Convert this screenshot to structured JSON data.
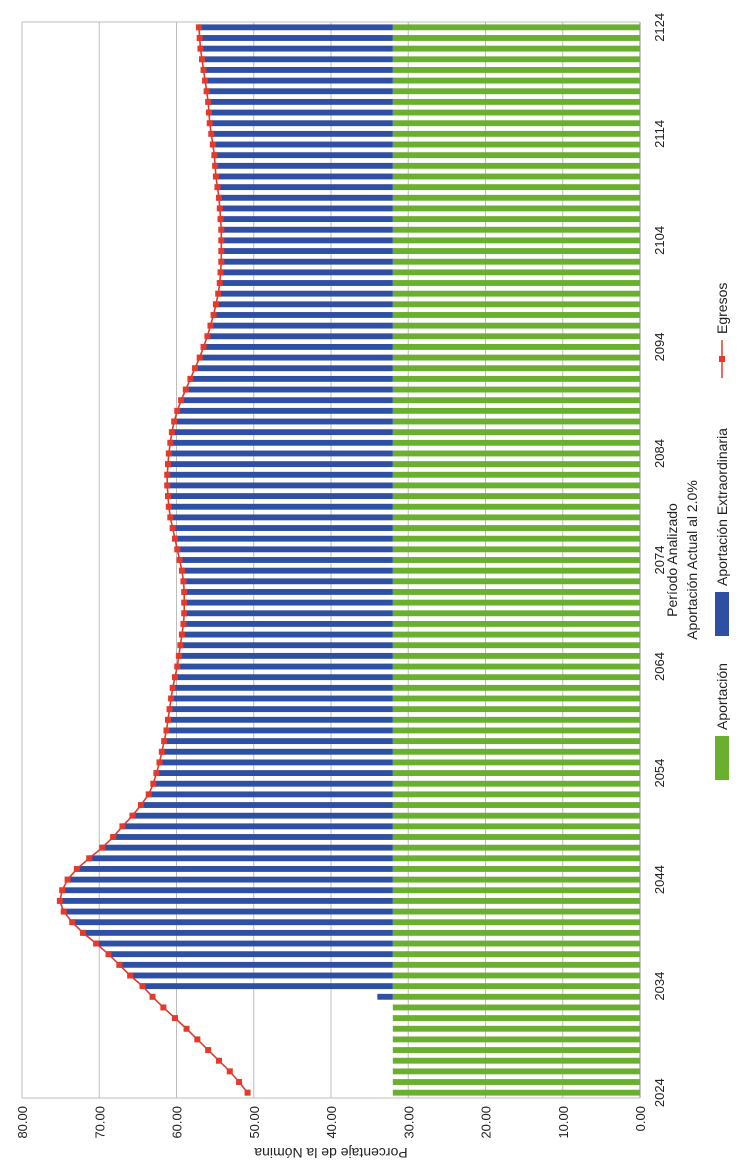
{
  "chart_data": {
    "type": "bar",
    "orientation": "rotated-90-ccw",
    "stacked": true,
    "xlabel": "Período Analizado",
    "subtitle": "Aportación Actual al 2.0%",
    "ylabel": "Porcentaje de la Nómina",
    "ylim": [
      0,
      80
    ],
    "yticks": [
      "0.00",
      "10.00",
      "20.00",
      "30.00",
      "40.00",
      "50.00",
      "60.00",
      "70.00",
      "80.00"
    ],
    "xticks": [
      "2024",
      "2034",
      "2044",
      "2054",
      "2064",
      "2074",
      "2084",
      "2094",
      "2104",
      "2114",
      "2124"
    ],
    "grid": true,
    "legend_position": "bottom",
    "x_start": 2024,
    "x_end": 2124,
    "series": [
      {
        "name": "Aportación",
        "type": "bar",
        "color": "#6AAF2E",
        "values": [
          32,
          32,
          32,
          32,
          32,
          32,
          32,
          32,
          32,
          32,
          32,
          32,
          32,
          32,
          32,
          32,
          32,
          32,
          32,
          32,
          32,
          32,
          32,
          32,
          32,
          32,
          32,
          32,
          32,
          32,
          32,
          32,
          32,
          32,
          32,
          32,
          32,
          32,
          32,
          32,
          32,
          32,
          32,
          32,
          32,
          32,
          32,
          32,
          32,
          32,
          32,
          32,
          32,
          32,
          32,
          32,
          32,
          32,
          32,
          32,
          32,
          32,
          32,
          32,
          32,
          32,
          32,
          32,
          32,
          32,
          32,
          32,
          32,
          32,
          32,
          32,
          32,
          32,
          32,
          32,
          32,
          32,
          32,
          32,
          32,
          32,
          32,
          32,
          32,
          32,
          32,
          32,
          32,
          32,
          32,
          32,
          32,
          32,
          32,
          32,
          32
        ]
      },
      {
        "name": "Aportación Extraordinaria",
        "type": "bar",
        "color": "#2E4FA3",
        "values": [
          0,
          0,
          0,
          0,
          0,
          0,
          0,
          0,
          0,
          2,
          32.1,
          34.0,
          35.4,
          36.8,
          38.4,
          40.1,
          41.5,
          42.6,
          43.1,
          42.8,
          42.1,
          40.9,
          39.3,
          37.6,
          36.2,
          35.0,
          33.7,
          32.6,
          31.6,
          31.0,
          30.6,
          30.2,
          29.9,
          29.6,
          29.3,
          29.1,
          28.9,
          28.7,
          28.5,
          28.2,
          27.9,
          27.7,
          27.5,
          27.3,
          27.1,
          27.0,
          27.0,
          27.0,
          27.1,
          27.3,
          27.6,
          27.9,
          28.2,
          28.5,
          28.8,
          29.0,
          29.1,
          29.2,
          29.2,
          29.1,
          29.0,
          28.8,
          28.6,
          28.3,
          27.9,
          27.4,
          26.8,
          26.2,
          25.6,
          25.0,
          24.5,
          24.0,
          23.6,
          23.2,
          22.9,
          22.6,
          22.4,
          22.3,
          22.2,
          22.2,
          22.2,
          22.2,
          22.3,
          22.4,
          22.5,
          22.7,
          22.9,
          23.0,
          23.1,
          23.3,
          23.5,
          23.7,
          23.8,
          23.9,
          24.1,
          24.3,
          24.5,
          24.7,
          24.9,
          25.0,
          25.1
        ]
      },
      {
        "name": "Egresos",
        "type": "line",
        "color": "#E23A2C",
        "values": [
          50.8,
          51.9,
          53.1,
          54.5,
          55.9,
          57.3,
          58.7,
          60.2,
          61.7,
          63.1,
          64.4,
          66.0,
          67.4,
          68.8,
          70.4,
          72.1,
          73.5,
          74.6,
          75.1,
          74.8,
          74.1,
          72.9,
          71.3,
          69.6,
          68.2,
          67.0,
          65.7,
          64.6,
          63.6,
          63.0,
          62.6,
          62.2,
          61.9,
          61.6,
          61.3,
          61.1,
          60.9,
          60.7,
          60.5,
          60.2,
          59.9,
          59.7,
          59.5,
          59.3,
          59.1,
          59.0,
          59.0,
          59.0,
          59.1,
          59.3,
          59.6,
          59.9,
          60.2,
          60.5,
          60.8,
          61.0,
          61.1,
          61.2,
          61.2,
          61.1,
          61.0,
          60.8,
          60.6,
          60.3,
          59.9,
          59.4,
          58.8,
          58.2,
          57.6,
          57.0,
          56.5,
          56.0,
          55.6,
          55.2,
          54.9,
          54.6,
          54.4,
          54.3,
          54.2,
          54.2,
          54.2,
          54.2,
          54.3,
          54.4,
          54.5,
          54.7,
          54.9,
          55.0,
          55.1,
          55.3,
          55.5,
          55.7,
          55.8,
          55.9,
          56.1,
          56.3,
          56.5,
          56.7,
          56.9,
          57.0,
          57.1
        ]
      }
    ]
  }
}
